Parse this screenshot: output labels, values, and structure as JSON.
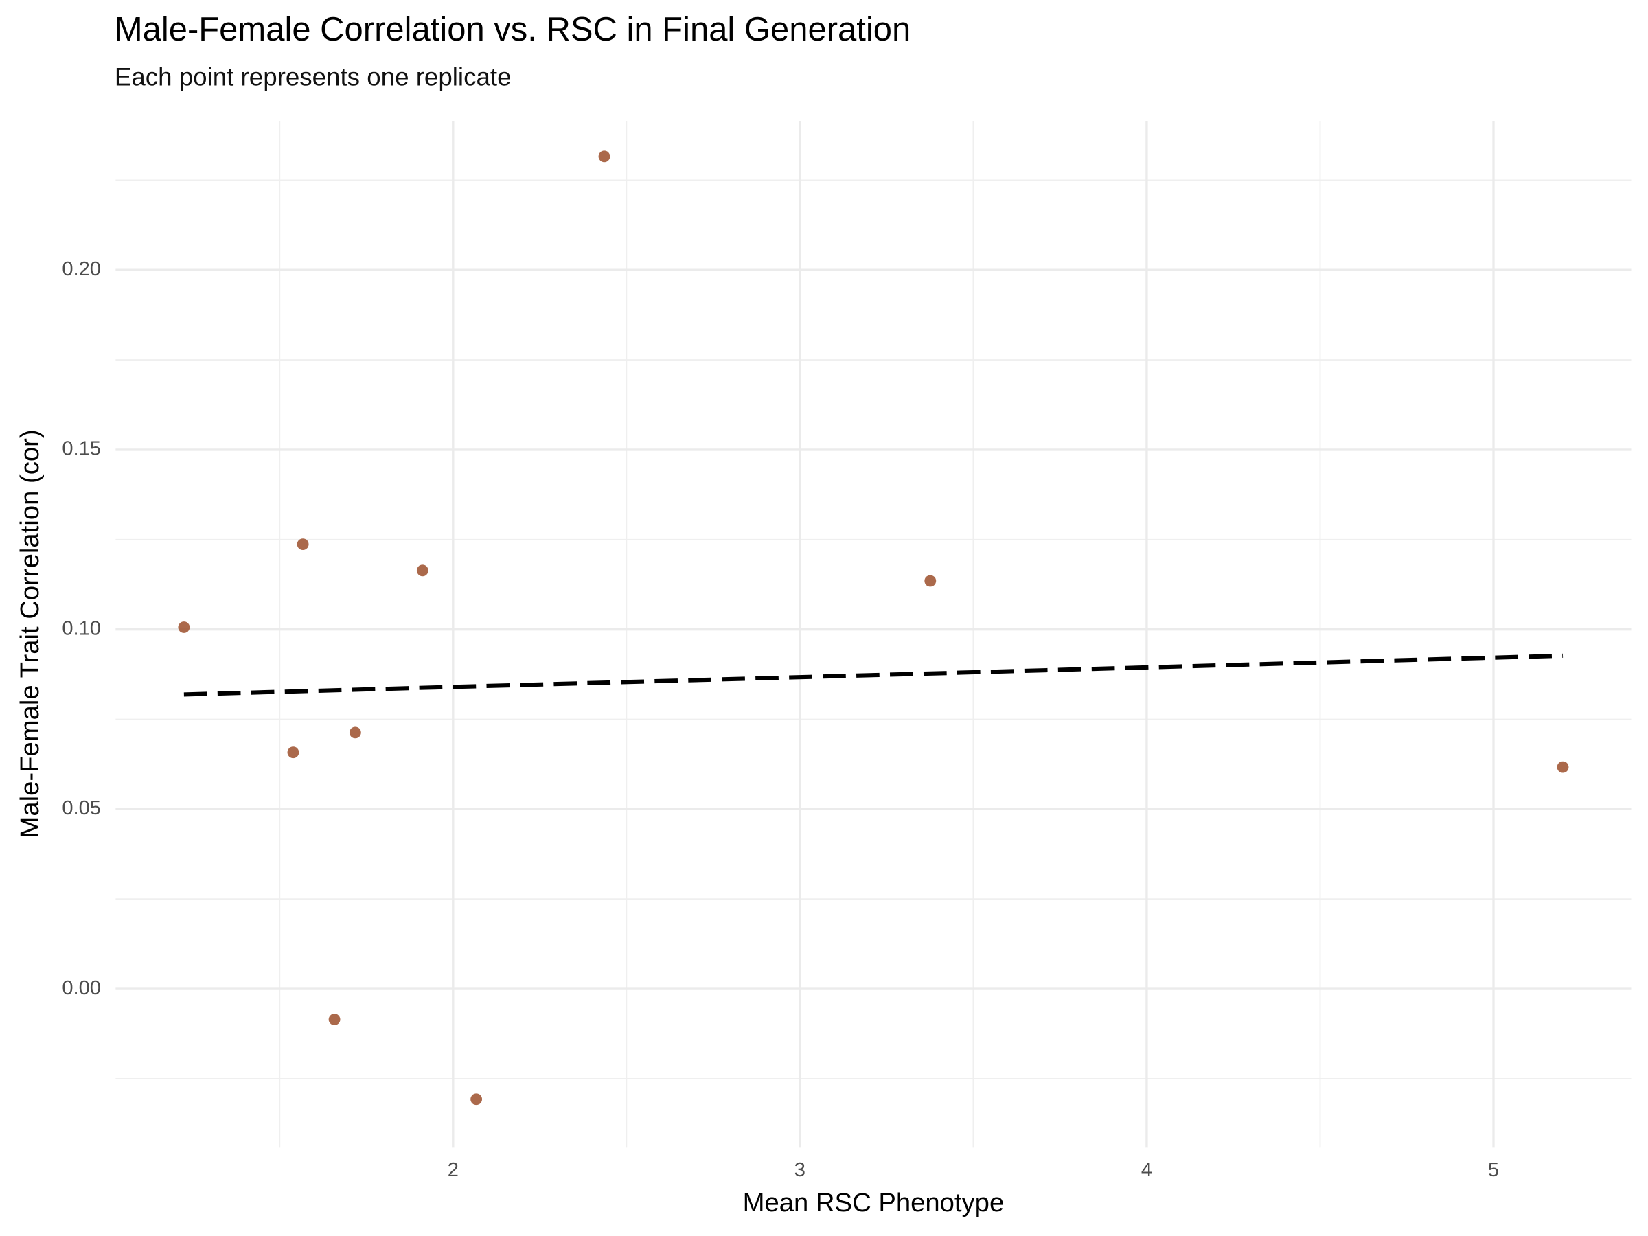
{
  "chart_data": {
    "type": "scatter",
    "title": "Male-Female Correlation vs. RSC in Final Generation",
    "subtitle": "Each point represents one replicate",
    "x_label": "Mean RSC Phenotype",
    "y_label": "Male-Female Trait Correlation (cor)",
    "series": [
      {
        "name": "replicates",
        "color": "#9c4f2b",
        "x": [
          1.224,
          1.567,
          1.539,
          1.658,
          1.718,
          1.912,
          2.067,
          2.436,
          3.376,
          5.2
        ],
        "values": [
          0.1006,
          0.1237,
          0.0658,
          -0.0085,
          0.0713,
          0.1164,
          -0.0307,
          0.2316,
          0.1135,
          0.0617
        ]
      }
    ],
    "trend": {
      "color": "#000000",
      "x": [
        1.224,
        5.2
      ],
      "values": [
        0.0819,
        0.0927
      ]
    },
    "xlim": [
      1.027,
      5.397
    ],
    "ylim": [
      -0.0442,
      0.2415
    ],
    "xticks": [
      2,
      3,
      4,
      5
    ],
    "yticks": [
      {
        "value": 0,
        "label": "0.00"
      },
      {
        "value": 0.05,
        "label": "0.05"
      },
      {
        "value": 0.1,
        "label": "0.10"
      },
      {
        "value": 0.15,
        "label": "0.15"
      },
      {
        "value": 0.2,
        "label": "0.20"
      }
    ],
    "xminor": [
      1.5,
      2.5,
      3.5,
      4.5
    ],
    "yminor": [
      -0.025,
      0.025,
      0.075,
      0.125,
      0.175,
      0.225
    ],
    "grid": true
  }
}
